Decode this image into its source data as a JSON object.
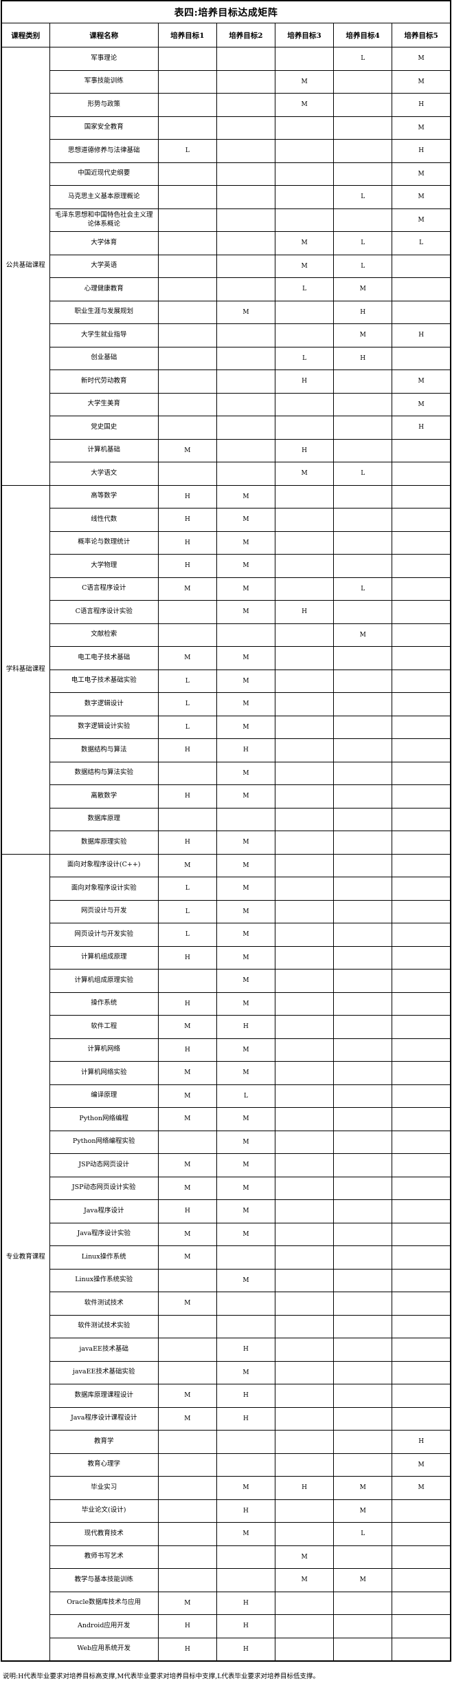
{
  "title": "表四:培养目标达成矩阵",
  "note": "说明:H代表毕业要求对培养目标高支撑,M代表毕业要求对培养目标中支撑,L代表毕业要求对培养目标低支撑。",
  "table": {
    "headers": [
      "课程类别",
      "课程名称",
      "培养目标1",
      "培养目标2",
      "培养目标3",
      "培养目标4",
      "培养目标5"
    ],
    "categories": [
      {
        "name": "公共基础课程",
        "courses": [
          {
            "name": "军事理论",
            "goals": [
              "",
              "",
              "",
              "L",
              "M"
            ]
          },
          {
            "name": "军事技能训练",
            "goals": [
              "",
              "",
              "M",
              "",
              "M"
            ]
          },
          {
            "name": "形势与政策",
            "goals": [
              "",
              "",
              "M",
              "",
              "H"
            ]
          },
          {
            "name": "国家安全教育",
            "goals": [
              "",
              "",
              "",
              "",
              "M"
            ]
          },
          {
            "name": "思想道德修养与法律基础",
            "goals": [
              "L",
              "",
              "",
              "",
              "H"
            ]
          },
          {
            "name": "中国近现代史纲要",
            "goals": [
              "",
              "",
              "",
              "",
              "M"
            ]
          },
          {
            "name": "马克思主义基本原理概论",
            "goals": [
              "",
              "",
              "",
              "L",
              "M"
            ]
          },
          {
            "name": "毛泽东思想和中国特色社会主义理论体系概论",
            "goals": [
              "",
              "",
              "",
              "",
              "M"
            ]
          },
          {
            "name": "大学体育",
            "goals": [
              "",
              "",
              "M",
              "L",
              "L"
            ]
          },
          {
            "name": "大学英语",
            "goals": [
              "",
              "",
              "M",
              "L",
              ""
            ]
          },
          {
            "name": "心理健康教育",
            "goals": [
              "",
              "",
              "L",
              "M",
              ""
            ]
          },
          {
            "name": "职业生涯与发展规划",
            "goals": [
              "",
              "M",
              "",
              "H",
              ""
            ]
          },
          {
            "name": "大学生就业指导",
            "goals": [
              "",
              "",
              "",
              "M",
              "H"
            ]
          },
          {
            "name": "创业基础",
            "goals": [
              "",
              "",
              "L",
              "H",
              ""
            ]
          },
          {
            "name": "新时代劳动教育",
            "goals": [
              "",
              "",
              "H",
              "",
              "M"
            ]
          },
          {
            "name": "大学生美育",
            "goals": [
              "",
              "",
              "",
              "",
              "M"
            ]
          },
          {
            "name": "党史国史",
            "goals": [
              "",
              "",
              "",
              "",
              "H"
            ]
          },
          {
            "name": "计算机基础",
            "goals": [
              "M",
              "",
              "H",
              "",
              ""
            ]
          },
          {
            "name": "大学语文",
            "goals": [
              "",
              "",
              "M",
              "L",
              ""
            ]
          }
        ]
      },
      {
        "name": "学科基础课程",
        "courses": [
          {
            "name": "高等数学",
            "goals": [
              "H",
              "M",
              "",
              "",
              ""
            ]
          },
          {
            "name": "线性代数",
            "goals": [
              "H",
              "M",
              "",
              "",
              ""
            ]
          },
          {
            "name": "概率论与数理统计",
            "goals": [
              "H",
              "M",
              "",
              "",
              ""
            ]
          },
          {
            "name": "大学物理",
            "goals": [
              "H",
              "M",
              "",
              "",
              ""
            ]
          },
          {
            "name": "C语言程序设计",
            "goals": [
              "M",
              "M",
              "",
              "L",
              ""
            ]
          },
          {
            "name": "C语言程序设计实验",
            "goals": [
              "",
              "M",
              "H",
              "",
              ""
            ]
          },
          {
            "name": "文献检索",
            "goals": [
              "",
              "",
              "",
              "M",
              ""
            ]
          },
          {
            "name": "电工电子技术基础",
            "goals": [
              "M",
              "M",
              "",
              "",
              ""
            ]
          },
          {
            "name": "电工电子技术基础实验",
            "goals": [
              "L",
              "M",
              "",
              "",
              ""
            ]
          },
          {
            "name": "数字逻辑设计",
            "goals": [
              "L",
              "M",
              "",
              "",
              ""
            ]
          },
          {
            "name": "数字逻辑设计实验",
            "goals": [
              "L",
              "M",
              "",
              "",
              ""
            ]
          },
          {
            "name": "数据结构与算法",
            "goals": [
              "H",
              "H",
              "",
              "",
              ""
            ]
          },
          {
            "name": "数据结构与算法实验",
            "goals": [
              "",
              "M",
              "",
              "",
              ""
            ]
          },
          {
            "name": "离散数学",
            "goals": [
              "H",
              "M",
              "",
              "",
              ""
            ]
          },
          {
            "name": "数据库原理",
            "goals": [
              "",
              "",
              "",
              "",
              ""
            ]
          },
          {
            "name": "数据库原理实验",
            "goals": [
              "H",
              "M",
              "",
              "",
              ""
            ]
          }
        ]
      },
      {
        "name": "专业教育课程",
        "courses": [
          {
            "name": "面向对象程序设计(C++)",
            "goals": [
              "M",
              "M",
              "",
              "",
              ""
            ]
          },
          {
            "name": "面向对象程序设计实验",
            "goals": [
              "L",
              "M",
              "",
              "",
              ""
            ]
          },
          {
            "name": "网页设计与开发",
            "goals": [
              "L",
              "M",
              "",
              "",
              ""
            ]
          },
          {
            "name": "网页设计与开发实验",
            "goals": [
              "L",
              "M",
              "",
              "",
              ""
            ]
          },
          {
            "name": "计算机组成原理",
            "goals": [
              "H",
              "M",
              "",
              "",
              ""
            ]
          },
          {
            "name": "计算机组成原理实验",
            "goals": [
              "",
              "M",
              "",
              "",
              ""
            ]
          },
          {
            "name": "操作系统",
            "goals": [
              "H",
              "M",
              "",
              "",
              ""
            ]
          },
          {
            "name": "软件工程",
            "goals": [
              "M",
              "H",
              "",
              "",
              ""
            ]
          },
          {
            "name": "计算机网络",
            "goals": [
              "H",
              "M",
              "",
              "",
              ""
            ]
          },
          {
            "name": "计算机网络实验",
            "goals": [
              "M",
              "M",
              "",
              "",
              ""
            ]
          },
          {
            "name": "编译原理",
            "goals": [
              "M",
              "L",
              "",
              "",
              ""
            ]
          },
          {
            "name": "Python网络编程",
            "goals": [
              "M",
              "M",
              "",
              "",
              ""
            ]
          },
          {
            "name": "Python网络编程实验",
            "goals": [
              "",
              "M",
              "",
              "",
              ""
            ]
          },
          {
            "name": "JSP动态网页设计",
            "goals": [
              "M",
              "M",
              "",
              "",
              ""
            ]
          },
          {
            "name": "JSP动态网页设计实验",
            "goals": [
              "M",
              "M",
              "",
              "",
              ""
            ]
          },
          {
            "name": "Java程序设计",
            "goals": [
              "H",
              "M",
              "",
              "",
              ""
            ]
          },
          {
            "name": "Java程序设计实验",
            "goals": [
              "M",
              "M",
              "",
              "",
              ""
            ]
          },
          {
            "name": "Linux操作系统",
            "goals": [
              "M",
              "",
              "",
              "",
              ""
            ]
          },
          {
            "name": "Linux操作系统实验",
            "goals": [
              "",
              "M",
              "",
              "",
              ""
            ]
          },
          {
            "name": "软件测试技术",
            "goals": [
              "M",
              "",
              "",
              "",
              ""
            ]
          },
          {
            "name": "软件测试技术实验",
            "goals": [
              "",
              "",
              "",
              "",
              ""
            ]
          },
          {
            "name": "javaEE技术基础",
            "goals": [
              "",
              "H",
              "",
              "",
              ""
            ]
          },
          {
            "name": "javaEE技术基础实验",
            "goals": [
              "",
              "M",
              "",
              "",
              ""
            ]
          },
          {
            "name": "数据库原理课程设计",
            "goals": [
              "M",
              "H",
              "",
              "",
              ""
            ]
          },
          {
            "name": "Java程序设计课程设计",
            "goals": [
              "M",
              "H",
              "",
              "",
              ""
            ]
          },
          {
            "name": "教育学",
            "goals": [
              "",
              "",
              "",
              "",
              "H"
            ]
          },
          {
            "name": "教育心理学",
            "goals": [
              "",
              "",
              "",
              "",
              "M"
            ]
          },
          {
            "name": "毕业实习",
            "goals": [
              "",
              "M",
              "H",
              "M",
              "M"
            ]
          },
          {
            "name": "毕业论文(设计)",
            "goals": [
              "",
              "H",
              "",
              "M",
              ""
            ]
          },
          {
            "name": "现代教育技术",
            "goals": [
              "",
              "M",
              "",
              "L",
              ""
            ]
          },
          {
            "name": "教师书写艺术",
            "goals": [
              "",
              "",
              "M",
              "",
              ""
            ]
          },
          {
            "name": "教学与基本技能训练",
            "goals": [
              "",
              "",
              "M",
              "M",
              ""
            ]
          },
          {
            "name": "Oracle数据库技术与应用",
            "goals": [
              "M",
              "H",
              "",
              "",
              ""
            ]
          },
          {
            "name": "Android应用开发",
            "goals": [
              "H",
              "H",
              "",
              "",
              ""
            ]
          },
          {
            "name": "Web应用系统开发",
            "goals": [
              "H",
              "H",
              "",
              "",
              ""
            ]
          }
        ]
      }
    ]
  }
}
